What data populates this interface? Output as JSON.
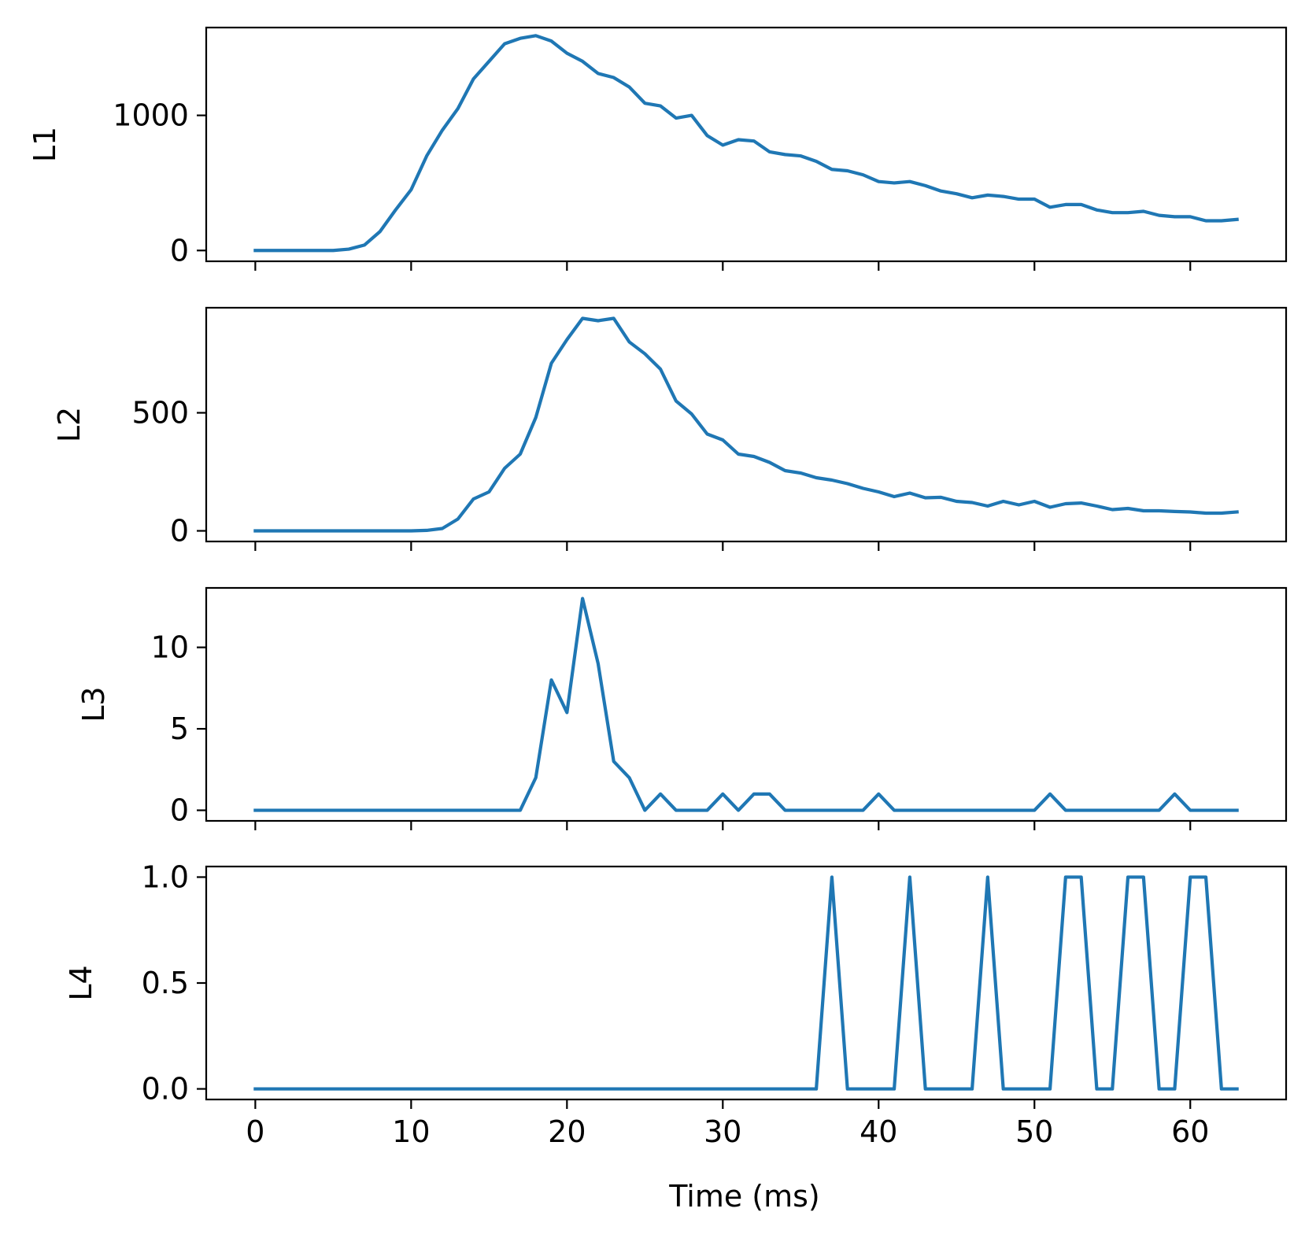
{
  "chart_data": [
    {
      "type": "line",
      "panel": "L1",
      "ylabel": "L1",
      "xlabel": "",
      "xlim": [
        -3.15,
        66.15
      ],
      "ylim": [
        -80,
        1650
      ],
      "xticks": [
        0,
        10,
        20,
        30,
        40,
        50,
        60
      ],
      "xtick_labels_visible": false,
      "yticks": [
        0,
        1000
      ],
      "ytick_labels": [
        "0",
        "1000"
      ],
      "series": [
        {
          "name": "L1",
          "color": "#1f77b4",
          "x": [
            0,
            1,
            2,
            3,
            4,
            5,
            6,
            7,
            8,
            9,
            10,
            11,
            12,
            13,
            14,
            15,
            16,
            17,
            18,
            19,
            20,
            21,
            22,
            23,
            24,
            25,
            26,
            27,
            28,
            29,
            30,
            31,
            32,
            33,
            34,
            35,
            36,
            37,
            38,
            39,
            40,
            41,
            42,
            43,
            44,
            45,
            46,
            47,
            48,
            49,
            50,
            51,
            52,
            53,
            54,
            55,
            56,
            57,
            58,
            59,
            60,
            61,
            62,
            63
          ],
          "values": [
            0,
            0,
            0,
            0,
            0,
            0,
            10,
            40,
            140,
            300,
            450,
            700,
            890,
            1050,
            1270,
            1400,
            1530,
            1570,
            1590,
            1550,
            1460,
            1400,
            1310,
            1280,
            1210,
            1090,
            1070,
            980,
            1000,
            850,
            780,
            820,
            810,
            730,
            710,
            700,
            660,
            600,
            590,
            560,
            510,
            500,
            510,
            480,
            440,
            420,
            390,
            410,
            400,
            380,
            380,
            320,
            340,
            340,
            300,
            280,
            280,
            290,
            260,
            250,
            250,
            220,
            220,
            230
          ]
        }
      ]
    },
    {
      "type": "line",
      "panel": "L2",
      "ylabel": "L2",
      "xlabel": "",
      "xlim": [
        -3.15,
        66.15
      ],
      "ylim": [
        -45,
        945
      ],
      "xticks": [
        0,
        10,
        20,
        30,
        40,
        50,
        60
      ],
      "xtick_labels_visible": false,
      "yticks": [
        0,
        500
      ],
      "ytick_labels": [
        "0",
        "500"
      ],
      "series": [
        {
          "name": "L2",
          "color": "#1f77b4",
          "x": [
            0,
            1,
            2,
            3,
            4,
            5,
            6,
            7,
            8,
            9,
            10,
            11,
            12,
            13,
            14,
            15,
            16,
            17,
            18,
            19,
            20,
            21,
            22,
            23,
            24,
            25,
            26,
            27,
            28,
            29,
            30,
            31,
            32,
            33,
            34,
            35,
            36,
            37,
            38,
            39,
            40,
            41,
            42,
            43,
            44,
            45,
            46,
            47,
            48,
            49,
            50,
            51,
            52,
            53,
            54,
            55,
            56,
            57,
            58,
            59,
            60,
            61,
            62,
            63
          ],
          "values": [
            0,
            0,
            0,
            0,
            0,
            0,
            0,
            0,
            0,
            0,
            0,
            2,
            10,
            50,
            135,
            165,
            265,
            325,
            480,
            710,
            810,
            900,
            890,
            900,
            800,
            750,
            685,
            550,
            495,
            410,
            385,
            325,
            315,
            290,
            255,
            245,
            225,
            215,
            200,
            180,
            165,
            145,
            160,
            140,
            142,
            125,
            120,
            105,
            125,
            110,
            125,
            100,
            115,
            118,
            105,
            90,
            95,
            85,
            85,
            82,
            80,
            75,
            75,
            80
          ]
        }
      ]
    },
    {
      "type": "line",
      "panel": "L3",
      "ylabel": "L3",
      "xlabel": "",
      "xlim": [
        -3.15,
        66.15
      ],
      "ylim": [
        -0.65,
        13.65
      ],
      "xticks": [
        0,
        10,
        20,
        30,
        40,
        50,
        60
      ],
      "xtick_labels_visible": false,
      "yticks": [
        0,
        5,
        10
      ],
      "ytick_labels": [
        "0",
        "5",
        "10"
      ],
      "series": [
        {
          "name": "L3",
          "color": "#1f77b4",
          "x": [
            0,
            1,
            2,
            3,
            4,
            5,
            6,
            7,
            8,
            9,
            10,
            11,
            12,
            13,
            14,
            15,
            16,
            17,
            18,
            19,
            20,
            21,
            22,
            23,
            24,
            25,
            26,
            27,
            28,
            29,
            30,
            31,
            32,
            33,
            34,
            35,
            36,
            37,
            38,
            39,
            40,
            41,
            42,
            43,
            44,
            45,
            46,
            47,
            48,
            49,
            50,
            51,
            52,
            53,
            54,
            55,
            56,
            57,
            58,
            59,
            60,
            61,
            62,
            63
          ],
          "values": [
            0,
            0,
            0,
            0,
            0,
            0,
            0,
            0,
            0,
            0,
            0,
            0,
            0,
            0,
            0,
            0,
            0,
            0,
            2,
            8,
            6,
            13,
            9,
            3,
            2,
            0,
            1,
            0,
            0,
            0,
            1,
            0,
            1,
            1,
            0,
            0,
            0,
            0,
            0,
            0,
            1,
            0,
            0,
            0,
            0,
            0,
            0,
            0,
            0,
            0,
            0,
            1,
            0,
            0,
            0,
            0,
            0,
            0,
            0,
            1,
            0,
            0,
            0,
            0
          ]
        }
      ]
    },
    {
      "type": "line",
      "panel": "L4",
      "ylabel": "L4",
      "xlabel": "Time (ms)",
      "xlim": [
        -3.15,
        66.15
      ],
      "ylim": [
        -0.05,
        1.05
      ],
      "xticks": [
        0,
        10,
        20,
        30,
        40,
        50,
        60
      ],
      "xtick_labels_visible": true,
      "xtick_labels": [
        "0",
        "10",
        "20",
        "30",
        "40",
        "50",
        "60"
      ],
      "yticks": [
        0,
        0.5,
        1
      ],
      "ytick_labels": [
        "0.0",
        "0.5",
        "1.0"
      ],
      "series": [
        {
          "name": "L4",
          "color": "#1f77b4",
          "x": [
            0,
            1,
            2,
            3,
            4,
            5,
            6,
            7,
            8,
            9,
            10,
            11,
            12,
            13,
            14,
            15,
            16,
            17,
            18,
            19,
            20,
            21,
            22,
            23,
            24,
            25,
            26,
            27,
            28,
            29,
            30,
            31,
            32,
            33,
            34,
            35,
            36,
            37,
            38,
            39,
            40,
            41,
            42,
            43,
            44,
            45,
            46,
            47,
            48,
            49,
            50,
            51,
            52,
            53,
            54,
            55,
            56,
            57,
            58,
            59,
            60,
            61,
            62,
            63
          ],
          "values": [
            0,
            0,
            0,
            0,
            0,
            0,
            0,
            0,
            0,
            0,
            0,
            0,
            0,
            0,
            0,
            0,
            0,
            0,
            0,
            0,
            0,
            0,
            0,
            0,
            0,
            0,
            0,
            0,
            0,
            0,
            0,
            0,
            0,
            0,
            0,
            0,
            0,
            1,
            0,
            0,
            0,
            0,
            1,
            0,
            0,
            0,
            0,
            1,
            0,
            0,
            0,
            0,
            1,
            1,
            0,
            0,
            1,
            1,
            0,
            0,
            1,
            1,
            0,
            0
          ]
        }
      ]
    }
  ]
}
